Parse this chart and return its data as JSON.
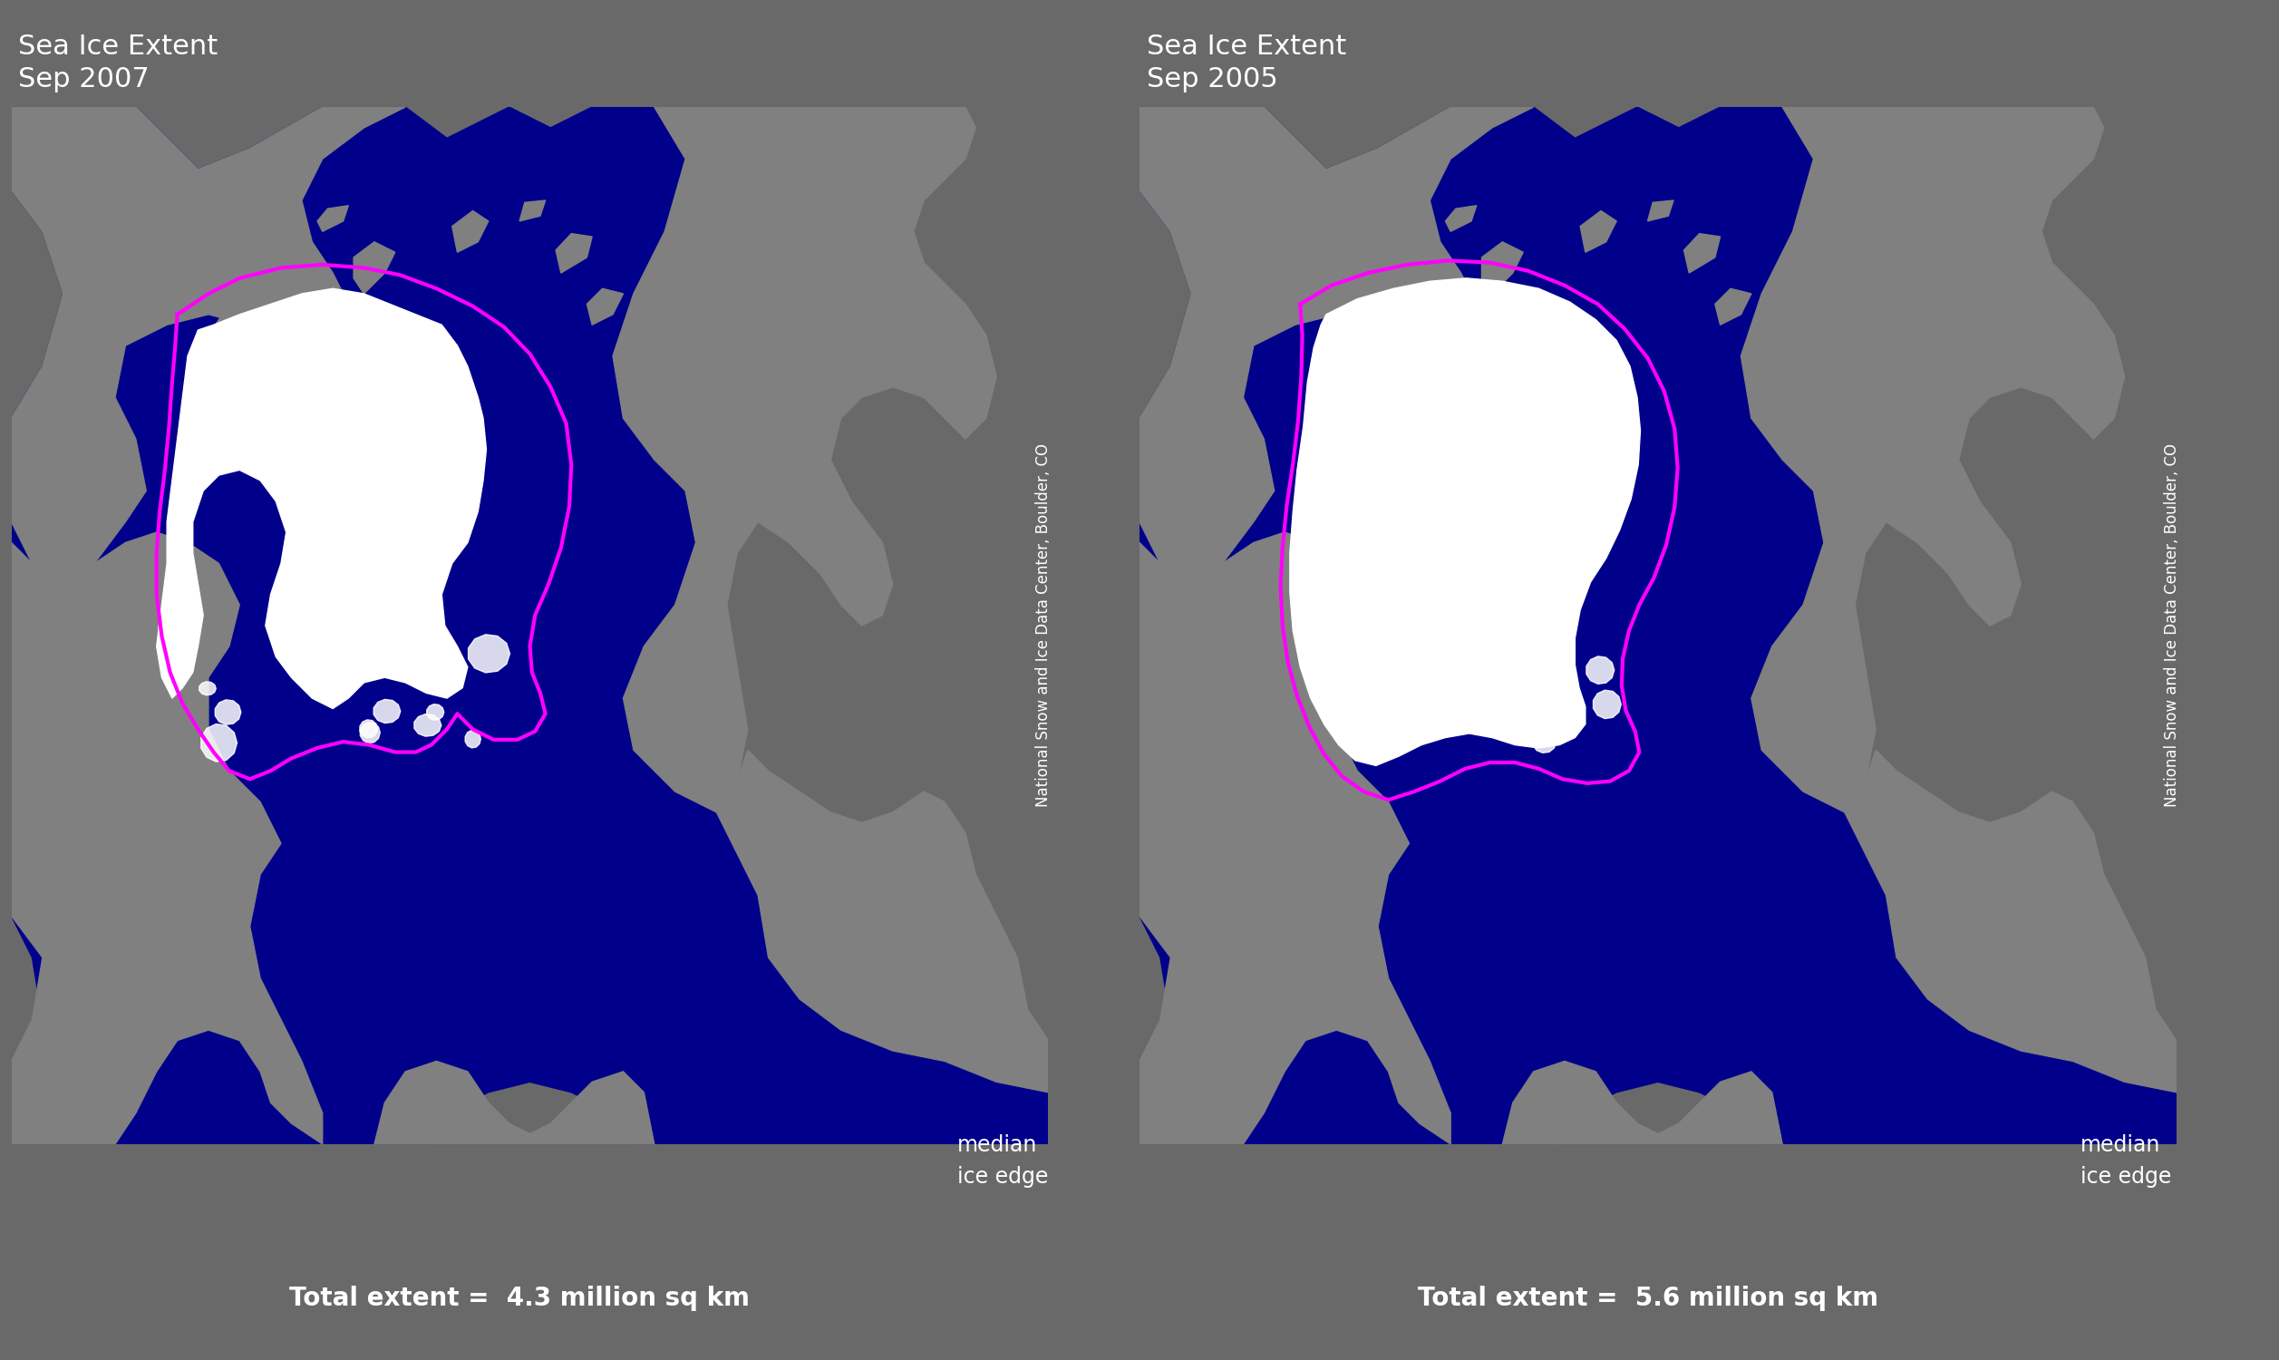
{
  "background_color": "#696969",
  "ocean_color": "#00008B",
  "ice_color": "#FFFFFF",
  "land_color": "#808080",
  "median_edge_color": "#FF00FF",
  "title_color": "#FFFFFF",
  "left_title": "Sea Ice Extent\nSep 2007",
  "right_title": "Sea Ice Extent\nSep 2005",
  "left_extent": "Total extent =  4.3 million sq km",
  "right_extent": "Total extent =  5.6 million sq km",
  "legend_label1": "median",
  "legend_label2": "ice edge",
  "watermark": "National Snow and Ice Data Center, Boulder, CO",
  "title_fontsize": 22,
  "label_fontsize": 20,
  "watermark_fontsize": 12
}
